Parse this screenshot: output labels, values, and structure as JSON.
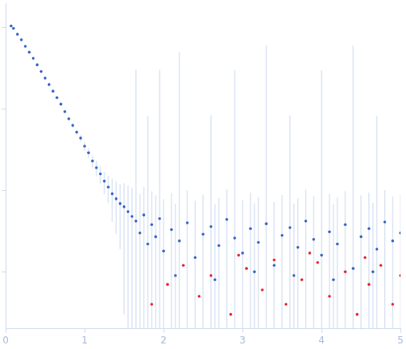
{
  "chart_data": {
    "type": "scatter",
    "log": "y",
    "grid": false,
    "tick_labels": "x",
    "xlim": [
      0,
      5
    ],
    "xticks": [
      0,
      1,
      2,
      3,
      4,
      5
    ],
    "ylim": [
      0.0002,
      2
    ],
    "yticks": [
      0.001,
      0.01,
      0.1,
      1
    ],
    "series": [
      {
        "color": "#3a66c4",
        "x": [
          0.07,
          0.1,
          0.15,
          0.2,
          0.25,
          0.3,
          0.35,
          0.4,
          0.45,
          0.5,
          0.55,
          0.6,
          0.65,
          0.7,
          0.75,
          0.8,
          0.85,
          0.9,
          0.95,
          1.0,
          1.05,
          1.1,
          1.15,
          1.2,
          1.25,
          1.3,
          1.35,
          1.4,
          1.45,
          1.5,
          1.55,
          1.6,
          1.65,
          1.7,
          1.75,
          1.8,
          1.85,
          1.9,
          1.95,
          2.0,
          2.1,
          2.2,
          2.3,
          2.4,
          2.5,
          2.6,
          2.7,
          2.8,
          2.9,
          3.0,
          3.1,
          3.2,
          3.3,
          3.4,
          3.5,
          3.6,
          3.7,
          3.8,
          3.9,
          4.0,
          4.1,
          4.2,
          4.3,
          4.4,
          4.5,
          4.6,
          4.7,
          4.8,
          4.9,
          5.0,
          2.15,
          2.65,
          3.15,
          3.65,
          4.15,
          4.65
        ],
        "values": [
          1.05,
          0.98,
          0.83,
          0.71,
          0.59,
          0.5,
          0.42,
          0.35,
          0.29,
          0.24,
          0.2,
          0.166,
          0.138,
          0.115,
          0.093,
          0.076,
          0.063,
          0.052,
          0.044,
          0.035,
          0.029,
          0.023,
          0.019,
          0.016,
          0.013,
          0.011,
          0.0091,
          0.0079,
          0.0069,
          0.0063,
          0.0055,
          0.0048,
          0.0042,
          0.003,
          0.005,
          0.0022,
          0.0038,
          0.0027,
          0.0045,
          0.0018,
          0.0033,
          0.0024,
          0.004,
          0.0015,
          0.0029,
          0.0036,
          0.0021,
          0.0044,
          0.0026,
          0.0017,
          0.0034,
          0.0023,
          0.0039,
          0.0012,
          0.0028,
          0.0035,
          0.002,
          0.0042,
          0.0025,
          0.0016,
          0.0031,
          0.0022,
          0.0038,
          0.0011,
          0.0027,
          0.0034,
          0.0019,
          0.0041,
          0.0024,
          0.003,
          0.0009,
          0.0008,
          0.001,
          0.0009,
          0.0008,
          0.001
        ],
        "errors": [
          0.02,
          0.02,
          0.015,
          0.012,
          0.01,
          0.009,
          0.008,
          0.007,
          0.006,
          0.005,
          0.005,
          0.004,
          0.004,
          0.004,
          0.004,
          0.004,
          0.004,
          0.004,
          0.004,
          0.004,
          0.004,
          0.004,
          0.004,
          0.004,
          0.004,
          0.004,
          0.005,
          0.005,
          0.005,
          0.006,
          0.006,
          0.006,
          0.3,
          0.006,
          0.006,
          0.08,
          0.006,
          0.006,
          0.3,
          0.006,
          0.006,
          0.5,
          0.006,
          0.006,
          0.006,
          0.08,
          0.006,
          0.006,
          0.3,
          0.006,
          0.006,
          0.006,
          0.6,
          0.006,
          0.006,
          0.08,
          0.006,
          0.006,
          0.006,
          0.3,
          0.006,
          0.006,
          0.006,
          0.6,
          0.006,
          0.006,
          0.08,
          0.006,
          0.006,
          0.006,
          0.006,
          0.006,
          0.006,
          0.006,
          0.006,
          0.006
        ]
      },
      {
        "color": "#e8262f",
        "x": [
          1.85,
          2.05,
          2.25,
          2.45,
          2.6,
          2.85,
          3.05,
          3.25,
          3.4,
          3.55,
          3.75,
          3.95,
          4.1,
          4.3,
          4.45,
          4.6,
          4.75,
          4.9,
          5.0,
          2.95,
          3.85,
          4.55
        ],
        "values": [
          0.0004,
          0.0007,
          0.0012,
          0.0005,
          0.0009,
          0.0003,
          0.0011,
          0.0006,
          0.0014,
          0.0004,
          0.0008,
          0.0013,
          0.0005,
          0.001,
          0.0003,
          0.0007,
          0.0012,
          0.0004,
          0.0009,
          0.0016,
          0.0017,
          0.0015
        ]
      }
    ]
  }
}
